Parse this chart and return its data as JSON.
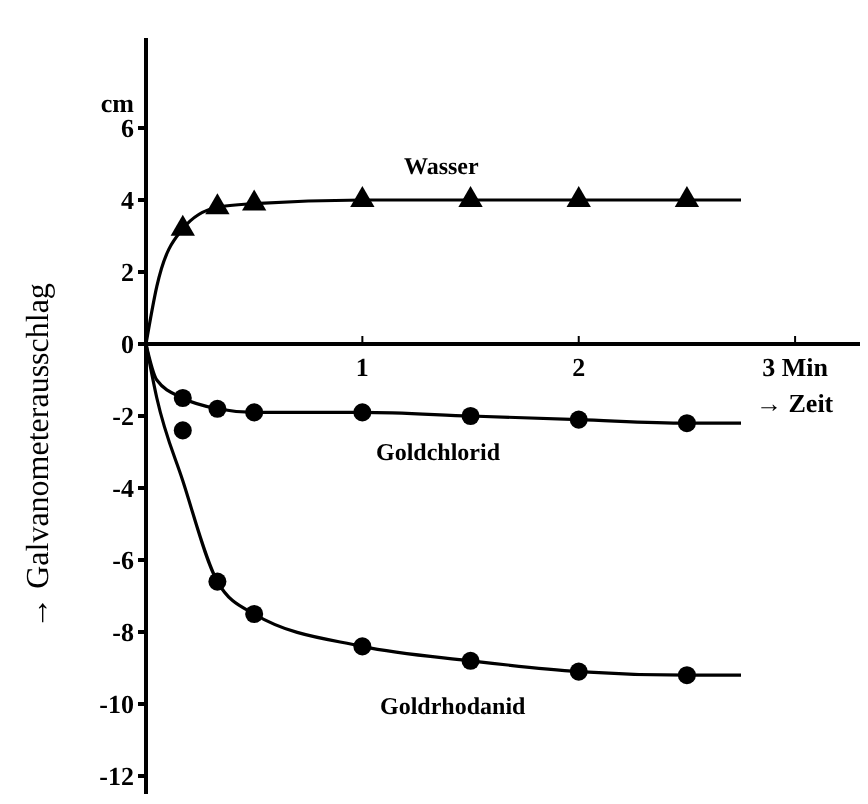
{
  "chart_data": {
    "type": "line",
    "ylabel": "→ Galvanometerausschlag",
    "xlabel": "→ Zeit",
    "annotations": [
      "cm"
    ],
    "xlim": [
      0,
      3.3
    ],
    "xticks": [
      1,
      2,
      {
        "value": 3,
        "label": "3 Min"
      }
    ],
    "ylim": [
      -12.5,
      8.5
    ],
    "yticks": [
      -12,
      -10,
      -8,
      -6,
      -4,
      -2,
      0,
      2,
      4,
      6
    ],
    "grid": false,
    "legend": false,
    "line_style": "solid",
    "series": [
      {
        "name": "Wasser",
        "color": "#000000",
        "marker": "none",
        "x": [
          0,
          0.05,
          0.17,
          0.33,
          0.5,
          1,
          1.5,
          2,
          2.5,
          2.75
        ],
        "values": [
          0,
          1.6,
          3.2,
          3.8,
          3.9,
          4,
          4,
          4,
          4,
          4
        ]
      },
      {
        "type": "scatter",
        "color": "#000000",
        "marker": "triangle",
        "x": [
          0.17,
          0.33,
          0.5,
          1,
          1.5,
          2,
          2.5
        ],
        "values": [
          3.2,
          3.8,
          3.9,
          4,
          4,
          4,
          4
        ]
      },
      {
        "name": "Goldchlorid",
        "color": "#000000",
        "marker": "none",
        "x": [
          0,
          0.05,
          0.17,
          0.33,
          0.5,
          1,
          1.5,
          2,
          2.5,
          2.75
        ],
        "values": [
          0,
          -1,
          -1.5,
          -1.8,
          -1.9,
          -1.9,
          -2,
          -2.1,
          -2.2,
          -2.2
        ]
      },
      {
        "type": "scatter",
        "color": "#000000",
        "marker": "circle",
        "x": [
          0.17,
          0.17,
          0.33,
          0.5,
          1,
          1.5,
          2,
          2.5
        ],
        "values": [
          -1.5,
          -2.4,
          -1.8,
          -1.9,
          -1.9,
          -2,
          -2.1,
          -2.2
        ]
      },
      {
        "name": "Goldrhodanid",
        "color": "#000000",
        "marker": "none",
        "x": [
          0,
          0.05,
          0.17,
          0.33,
          0.5,
          1,
          1.5,
          2,
          2.5,
          2.75
        ],
        "values": [
          0,
          -1.5,
          -3.8,
          -6.6,
          -7.5,
          -8.4,
          -8.8,
          -9.1,
          -9.2,
          -9.2
        ]
      },
      {
        "type": "scatter",
        "color": "#000000",
        "marker": "circle",
        "x": [
          0.33,
          0.5,
          1,
          1.5,
          2,
          2.5
        ],
        "values": [
          -6.6,
          -7.5,
          -8.4,
          -8.8,
          -9.1,
          -9.2
        ]
      }
    ]
  }
}
